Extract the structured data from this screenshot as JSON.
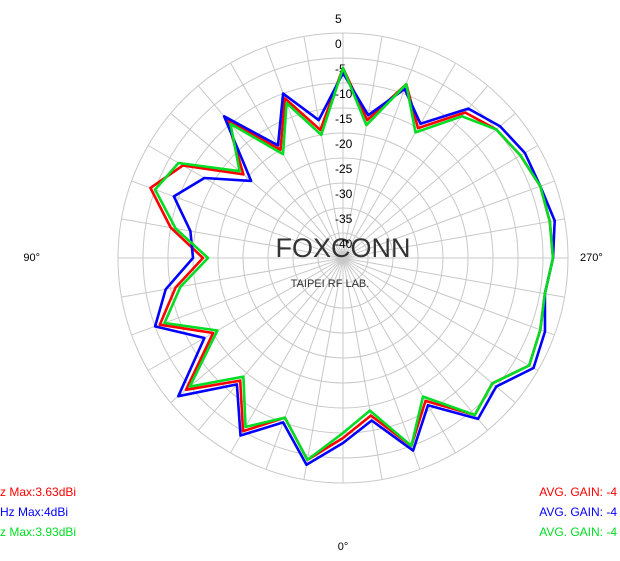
{
  "chart_data": {
    "type": "polar",
    "rlim": [
      -40,
      5
    ],
    "rticks": [
      5,
      0,
      -5,
      -10,
      -15,
      -20,
      -25,
      -30,
      -35,
      -40
    ],
    "thetaticks": [
      {
        "value": 90,
        "label": "90°"
      },
      {
        "value": 270,
        "label": "270°"
      },
      {
        "value": 0,
        "label": "0°"
      }
    ],
    "theta": [
      0,
      10,
      20,
      30,
      40,
      50,
      60,
      70,
      80,
      90,
      100,
      110,
      120,
      130,
      140,
      150,
      160,
      170,
      180,
      190,
      200,
      210,
      220,
      230,
      240,
      250,
      260,
      270,
      280,
      290,
      300,
      310,
      320,
      330,
      340,
      350
    ],
    "grid": true,
    "watermark": "FOXCONN",
    "watermark_sub": "TAIPEI RF LAB.",
    "series": [
      {
        "name": "z Max:3.63dBi",
        "avg_label": "AVG. GAIN: -4",
        "color": "#ff0000",
        "values": [
          -4,
          1,
          -6,
          0,
          -8,
          1,
          -10,
          -1,
          -6,
          -12,
          -5,
          1,
          -3,
          -14,
          -4,
          -15,
          -6,
          -14,
          -2,
          -12,
          -3,
          -10,
          -2,
          0,
          1,
          2,
          2,
          2,
          1,
          2,
          3,
          -1,
          1,
          -7,
          0,
          -8
        ]
      },
      {
        "name": "Hz Max:4dBi",
        "avg_label": "AVG. GAIN: -4",
        "color": "#0000ff",
        "values": [
          -3,
          2,
          -5,
          1,
          -7,
          3,
          -8,
          0,
          -4,
          -10,
          -9,
          -4,
          -8,
          -16,
          -3,
          -14,
          -5,
          -12,
          -3,
          -11,
          -4,
          -9,
          -1,
          1,
          2,
          2,
          3,
          2,
          1,
          3,
          4,
          0,
          2,
          -6,
          1,
          -7
        ]
      },
      {
        "name": "z Max:3.93dBi",
        "avg_label": "AVG. GAIN: -4",
        "color": "#00dd22",
        "values": [
          -5,
          1,
          -6,
          -1,
          -9,
          0,
          -11,
          -2,
          -7,
          -13,
          -6,
          0,
          -2,
          -13,
          -5,
          -16,
          -7,
          -15,
          -2,
          -13,
          -3,
          -11,
          -3,
          0,
          1,
          2,
          2,
          2,
          1,
          2,
          3,
          -1,
          1,
          -8,
          0,
          -9
        ]
      }
    ]
  }
}
